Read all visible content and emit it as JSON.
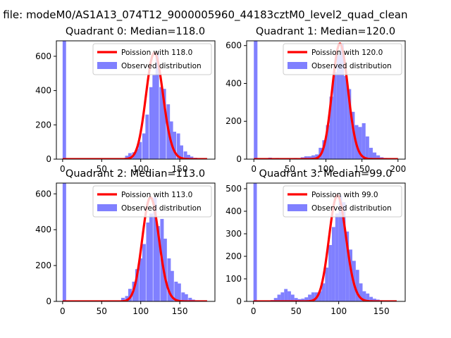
{
  "figure": {
    "suptitle": "n file: modeM0/AS1A13_074T12_9000005960_44183cztM0_level2_quad_clean",
    "colors": {
      "observed": "#8080ff",
      "poisson": "#ff0000"
    }
  },
  "chart_data": [
    {
      "type": "bar",
      "title": "Quadrant 0: Median=118.0",
      "xlim": [
        -8,
        195
      ],
      "ylim": [
        0,
        690
      ],
      "xticks": [
        0,
        50,
        100,
        150
      ],
      "yticks": [
        0,
        200,
        400,
        600
      ],
      "legend": {
        "placement": "top-right",
        "entries": [
          "Poission with 118.0",
          "Observed distribution"
        ]
      },
      "observed": {
        "name": "Observed distribution",
        "bin_width": 4.4,
        "bins": [
          [
            0,
            690
          ],
          [
            75,
            5
          ],
          [
            80,
            20
          ],
          [
            84,
            35
          ],
          [
            89,
            40
          ],
          [
            93,
            60
          ],
          [
            97,
            100
          ],
          [
            102,
            150
          ],
          [
            106,
            260
          ],
          [
            111,
            420
          ],
          [
            115,
            490
          ],
          [
            119,
            620
          ],
          [
            124,
            420
          ],
          [
            128,
            410
          ],
          [
            133,
            320
          ],
          [
            137,
            220
          ],
          [
            141,
            160
          ],
          [
            146,
            150
          ],
          [
            150,
            80
          ],
          [
            155,
            45
          ],
          [
            159,
            25
          ],
          [
            163,
            15
          ],
          [
            168,
            8
          ],
          [
            172,
            5
          ],
          [
            177,
            3
          ]
        ]
      },
      "poisson": {
        "name": "Poission with 118.0",
        "lambda": 118.0
      }
    },
    {
      "type": "bar",
      "title": "Quadrant 1: Median=120.0",
      "xlim": [
        -10,
        210
      ],
      "ylim": [
        0,
        625
      ],
      "xticks": [
        0,
        50,
        100,
        150,
        200
      ],
      "yticks": [
        0,
        200,
        400,
        600
      ],
      "legend": {
        "placement": "top-right",
        "entries": [
          "Poission with 120.0",
          "Observed distribution"
        ]
      },
      "observed": {
        "name": "Observed distribution",
        "bin_width": 5,
        "bins": [
          [
            0,
            625
          ],
          [
            10,
            3
          ],
          [
            20,
            8
          ],
          [
            30,
            6
          ],
          [
            45,
            5
          ],
          [
            55,
            6
          ],
          [
            65,
            10
          ],
          [
            70,
            15
          ],
          [
            75,
            15
          ],
          [
            80,
            20
          ],
          [
            85,
            25
          ],
          [
            90,
            60
          ],
          [
            95,
            100
          ],
          [
            100,
            180
          ],
          [
            105,
            330
          ],
          [
            110,
            460
          ],
          [
            115,
            550
          ],
          [
            120,
            610
          ],
          [
            125,
            440
          ],
          [
            130,
            370
          ],
          [
            135,
            250
          ],
          [
            140,
            180
          ],
          [
            145,
            170
          ],
          [
            150,
            190
          ],
          [
            155,
            120
          ],
          [
            160,
            60
          ],
          [
            165,
            35
          ],
          [
            170,
            20
          ],
          [
            175,
            10
          ],
          [
            180,
            6
          ],
          [
            190,
            3
          ]
        ]
      },
      "poisson": {
        "name": "Poission with 120.0",
        "lambda": 120.0
      }
    },
    {
      "type": "bar",
      "title": "Quadrant 2: Median=113.0",
      "xlim": [
        -8,
        195
      ],
      "ylim": [
        0,
        660
      ],
      "xticks": [
        0,
        50,
        100,
        150
      ],
      "yticks": [
        0,
        200,
        400,
        600
      ],
      "legend": {
        "placement": "top-right",
        "entries": [
          "Poission with 113.0",
          "Observed distribution"
        ]
      },
      "observed": {
        "name": "Observed distribution",
        "bin_width": 4.5,
        "bins": [
          [
            0,
            660
          ],
          [
            71,
            5
          ],
          [
            75,
            20
          ],
          [
            80,
            30
          ],
          [
            84,
            70
          ],
          [
            89,
            110
          ],
          [
            93,
            180
          ],
          [
            98,
            240
          ],
          [
            102,
            320
          ],
          [
            107,
            440
          ],
          [
            111,
            490
          ],
          [
            116,
            580
          ],
          [
            120,
            420
          ],
          [
            125,
            460
          ],
          [
            129,
            350
          ],
          [
            134,
            240
          ],
          [
            138,
            170
          ],
          [
            143,
            110
          ],
          [
            147,
            100
          ],
          [
            152,
            50
          ],
          [
            156,
            40
          ],
          [
            161,
            20
          ],
          [
            165,
            10
          ],
          [
            170,
            6
          ],
          [
            174,
            3
          ]
        ]
      },
      "poisson": {
        "name": "Poission with 113.0",
        "lambda": 113.0
      }
    },
    {
      "type": "bar",
      "title": "Quadrant 3: Median=99.0",
      "xlim": [
        -8,
        178
      ],
      "ylim": [
        0,
        525
      ],
      "xticks": [
        0,
        50,
        100,
        150
      ],
      "yticks": [
        0,
        100,
        200,
        300,
        400,
        500
      ],
      "legend": {
        "placement": "top-right",
        "entries": [
          "Poission with 99.0",
          "Observed distribution"
        ]
      },
      "observed": {
        "name": "Observed distribution",
        "bin_width": 4,
        "bins": [
          [
            0,
            525
          ],
          [
            20,
            6
          ],
          [
            24,
            15
          ],
          [
            28,
            30
          ],
          [
            32,
            40
          ],
          [
            36,
            55
          ],
          [
            40,
            45
          ],
          [
            44,
            30
          ],
          [
            48,
            15
          ],
          [
            52,
            10
          ],
          [
            56,
            12
          ],
          [
            60,
            18
          ],
          [
            64,
            30
          ],
          [
            68,
            40
          ],
          [
            72,
            40
          ],
          [
            76,
            45
          ],
          [
            80,
            80
          ],
          [
            84,
            150
          ],
          [
            88,
            250
          ],
          [
            92,
            330
          ],
          [
            96,
            390
          ],
          [
            100,
            470
          ],
          [
            104,
            440
          ],
          [
            108,
            310
          ],
          [
            112,
            230
          ],
          [
            116,
            180
          ],
          [
            120,
            140
          ],
          [
            124,
            80
          ],
          [
            128,
            45
          ],
          [
            132,
            35
          ],
          [
            136,
            20
          ],
          [
            140,
            12
          ],
          [
            144,
            8
          ],
          [
            148,
            5
          ],
          [
            152,
            3
          ]
        ]
      },
      "poisson": {
        "name": "Poission with 99.0",
        "lambda": 99.0
      }
    }
  ]
}
